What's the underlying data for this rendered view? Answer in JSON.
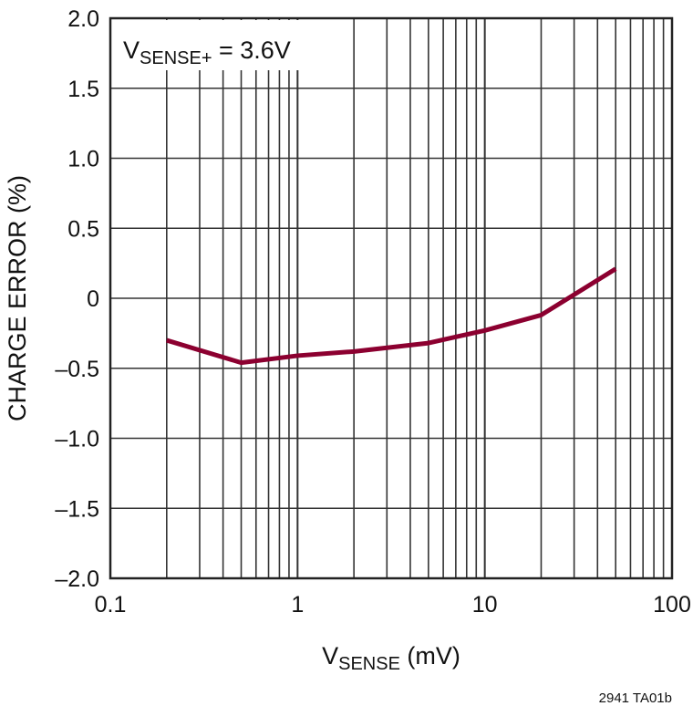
{
  "chart_data": {
    "type": "line",
    "title": "",
    "annotation": {
      "main": "V",
      "sub": "SENSE+",
      "rest": " = 3.6V"
    },
    "xlabel": {
      "main": "V",
      "sub": "SENSE",
      "rest": " (mV)"
    },
    "ylabel": "CHARGE ERROR (%)",
    "xscale": "log",
    "xlim": [
      0.1,
      100
    ],
    "ylim": [
      -2.0,
      2.0
    ],
    "grid": true,
    "xticks": [
      {
        "v": 0.1,
        "label": "0.1"
      },
      {
        "v": 1,
        "label": "1"
      },
      {
        "v": 10,
        "label": "10"
      },
      {
        "v": 100,
        "label": "100"
      }
    ],
    "yticks": [
      {
        "v": 2,
        "label": "2.0"
      },
      {
        "v": 1.5,
        "label": "1.5"
      },
      {
        "v": 1,
        "label": "1.0"
      },
      {
        "v": 0.5,
        "label": "0.5"
      },
      {
        "v": 0,
        "label": "0"
      },
      {
        "v": -0.5,
        "label": "–0.5"
      },
      {
        "v": -1,
        "label": "–1.0"
      },
      {
        "v": -1.5,
        "label": "–1.5"
      },
      {
        "v": -2,
        "label": "–2.0"
      }
    ],
    "series": [
      {
        "color": "#8c0030",
        "x": [
          0.2,
          0.5,
          1,
          2,
          5,
          10,
          20,
          50
        ],
        "y": [
          -0.3,
          -0.46,
          -0.41,
          -0.38,
          -0.32,
          -0.23,
          -0.12,
          0.21
        ]
      }
    ],
    "footnote": "2941 TA01b"
  }
}
